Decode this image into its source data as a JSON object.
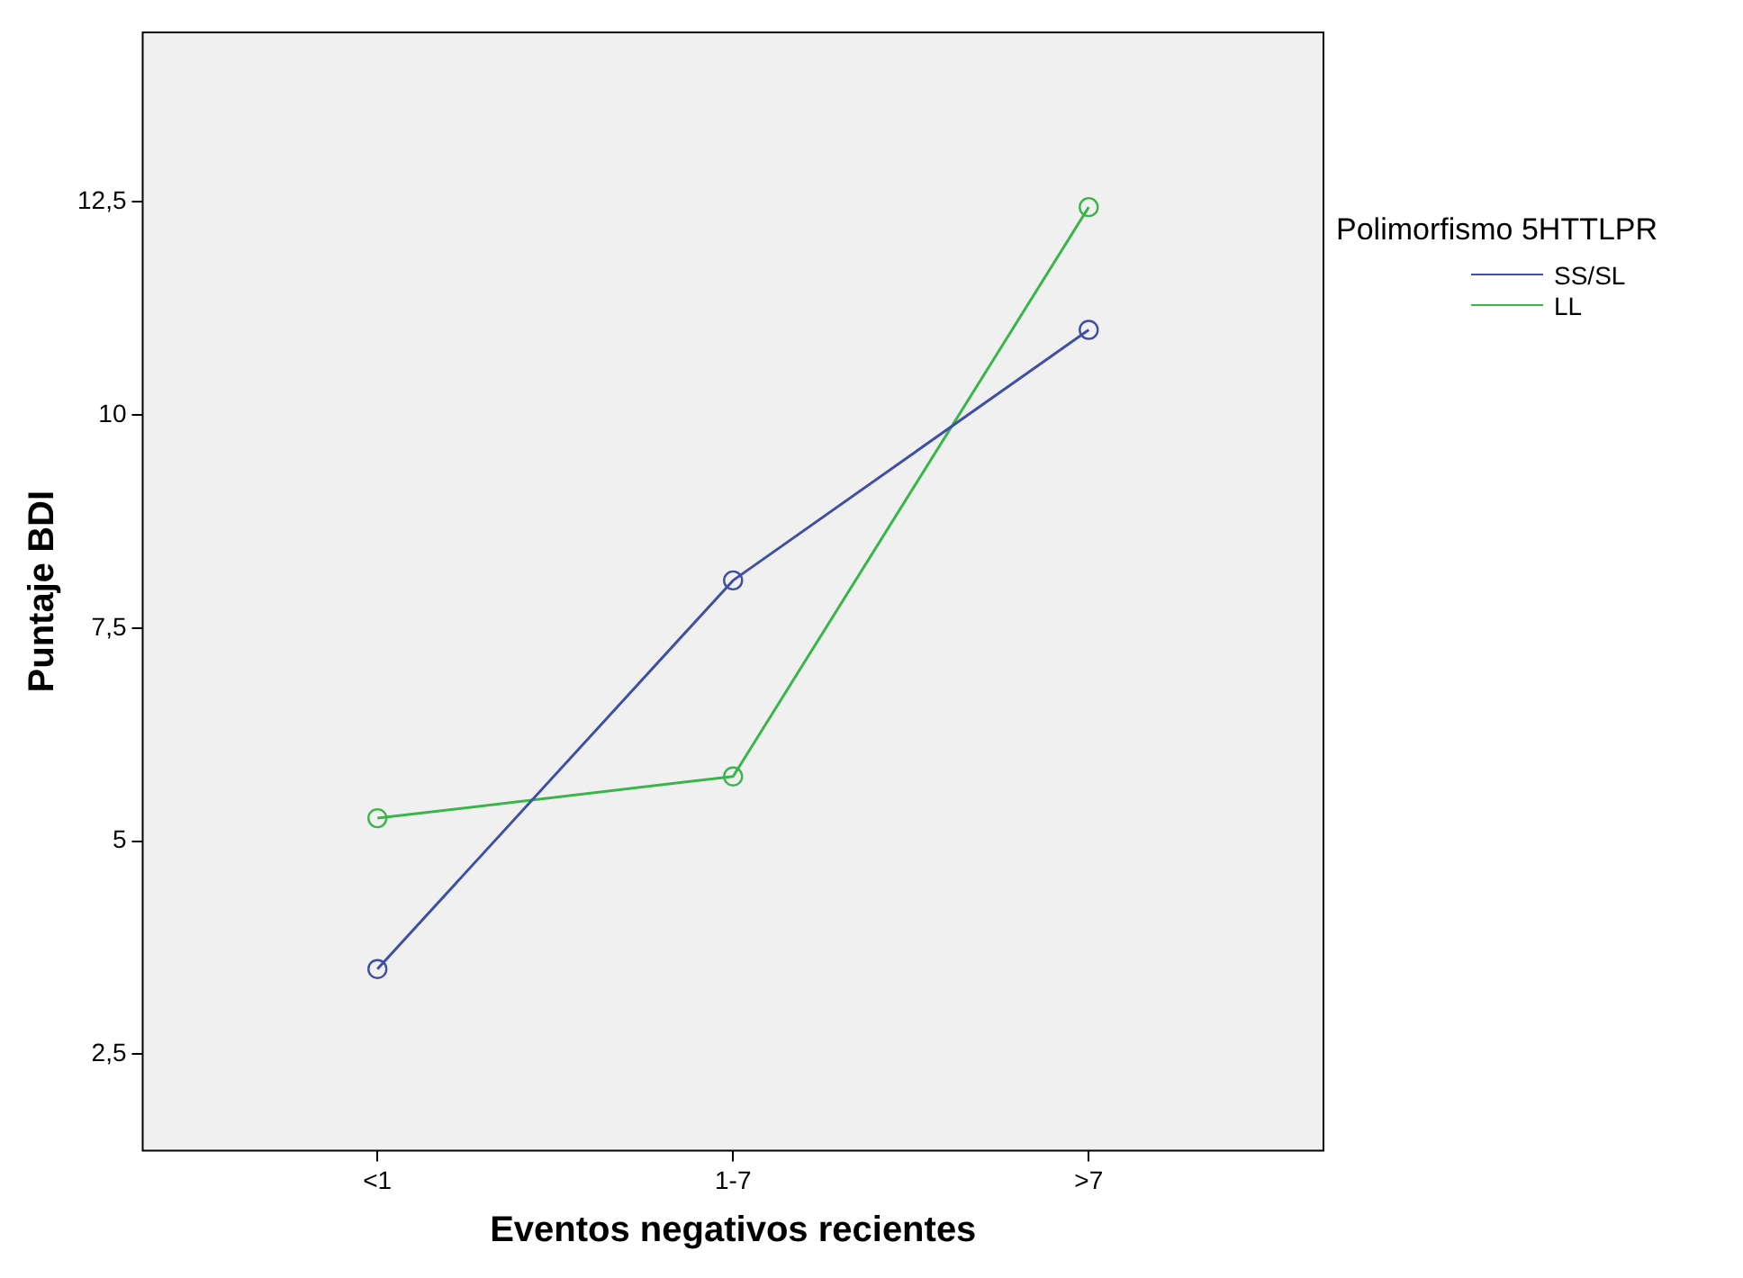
{
  "chart_data": {
    "type": "line",
    "xlabel": "Eventos negativos recientes",
    "ylabel": "Puntaje BDI",
    "legend_title": "Polimorfismo 5HTTLPR",
    "categories": [
      "<1",
      "1-7",
      ">7"
    ],
    "series": [
      {
        "name": "SS/SL",
        "color": "#3f4fa3",
        "values": [
          3.5,
          8.06,
          11.0
        ]
      },
      {
        "name": "LL",
        "color": "#39b54a",
        "values": [
          5.27,
          5.76,
          12.44
        ]
      }
    ],
    "ylim": [
      1.37,
      14.49
    ],
    "yticks": [
      {
        "value": 2.5,
        "label": "2,5"
      },
      5,
      {
        "value": 7.5,
        "label": "7,5"
      },
      10,
      {
        "value": 12.5,
        "label": "12,5"
      }
    ],
    "grid": false,
    "legend": "right",
    "marker": "circle",
    "line_style": "solid"
  }
}
